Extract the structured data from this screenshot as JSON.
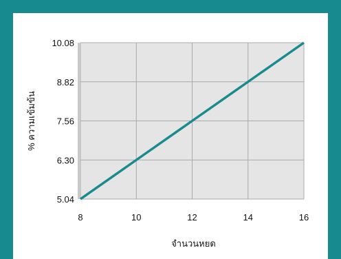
{
  "chart_data": {
    "type": "line",
    "xlabel": "จำนวนหยด",
    "ylabel": "% ความเข้มข้น",
    "xlim": [
      8,
      16
    ],
    "ylim": [
      5.04,
      10.08
    ],
    "x_ticks": [
      "8",
      "10",
      "12",
      "14",
      "16"
    ],
    "y_ticks": [
      "5.04",
      "6.30",
      "7.56",
      "8.82",
      "10.08"
    ],
    "grid": true,
    "series": [
      {
        "x": [
          8,
          10,
          12,
          14,
          16
        ],
        "values": [
          5.04,
          6.3,
          7.56,
          8.82,
          10.08
        ]
      }
    ],
    "colors": {
      "frame": "#178a90",
      "plot_bg": "#e5e5e5",
      "grid": "#a9a9a9",
      "line": "#1a8a8e"
    }
  }
}
